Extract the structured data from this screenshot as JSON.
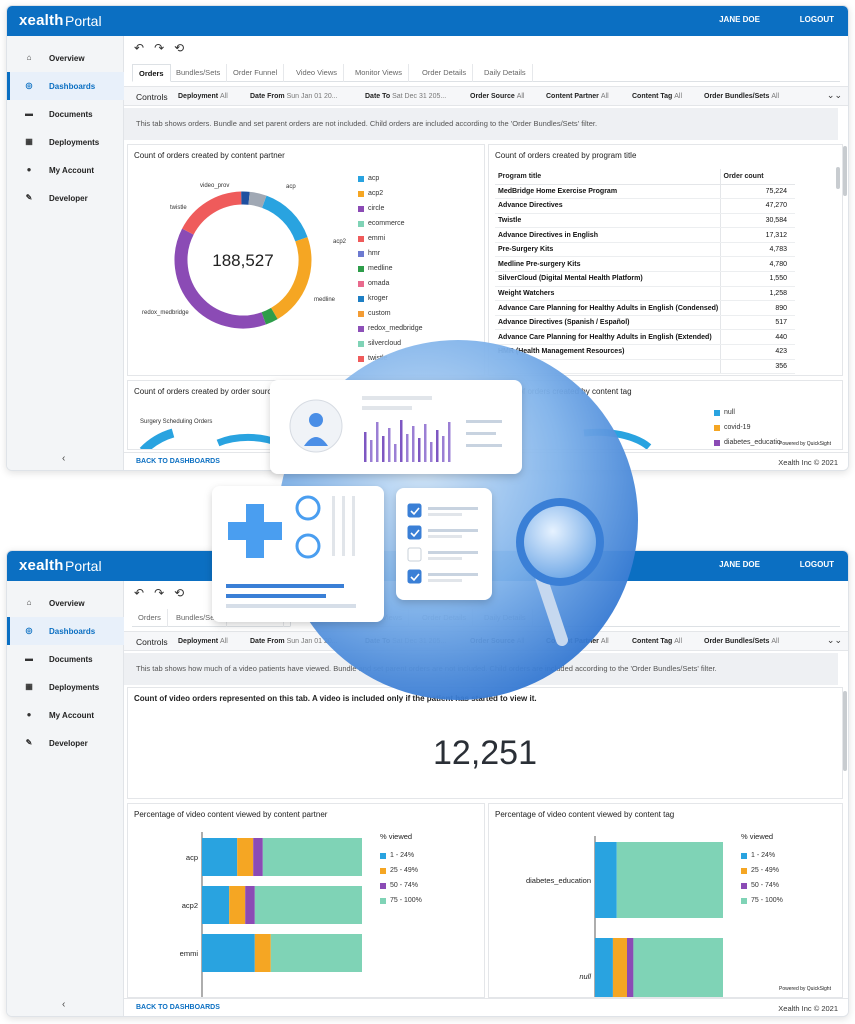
{
  "app": {
    "logo": "xealth",
    "title": "Portal",
    "user": "JANE DOE",
    "logout": "LOGOUT"
  },
  "sidebar": {
    "items": [
      {
        "label": "Overview",
        "icon": "home-icon"
      },
      {
        "label": "Dashboards",
        "icon": "dashboard-icon"
      },
      {
        "label": "Documents",
        "icon": "folder-icon"
      },
      {
        "label": "Deployments",
        "icon": "deployments-icon"
      },
      {
        "label": "My Account",
        "icon": "user-icon"
      },
      {
        "label": "Developer",
        "icon": "wrench-icon"
      }
    ],
    "collapse": "‹"
  },
  "toolbar": {
    "undo": "↶",
    "redo": "↷",
    "reset": "⟲"
  },
  "tabs": [
    "Orders",
    "Bundles/Sets",
    "Order Funnel",
    "Video Views",
    "Monitor Views",
    "Order Details",
    "Daily Details"
  ],
  "controls": {
    "title": "Controls",
    "filters": [
      {
        "label": "Deployment",
        "value": "All"
      },
      {
        "label": "Date From",
        "value": "Sun Jan 01 20..."
      },
      {
        "label": "Date To",
        "value": "Sat Dec 31 205..."
      },
      {
        "label": "Order Source",
        "value": "All"
      },
      {
        "label": "Content Partner",
        "value": "All"
      },
      {
        "label": "Content Tag",
        "value": "All"
      },
      {
        "label": "Order Bundles/Sets",
        "value": "All"
      }
    ]
  },
  "footer": {
    "back": "BACK TO DASHBOARDS",
    "copyright": "Xealth Inc © 2021",
    "powered": "Powered by QuickSight"
  },
  "window1": {
    "info": "This tab shows orders. Bundle and set parent orders are not included. Child orders are included according to the 'Order Bundles/Sets' filter.",
    "donut": {
      "title": "Count of orders created by content partner",
      "total": "188,527",
      "labels": [
        "acp",
        "acp2",
        "medline",
        "redox_medbridge",
        "twistle",
        "video_prov"
      ],
      "legend": [
        {
          "name": "acp",
          "color": "#29a3e0"
        },
        {
          "name": "acp2",
          "color": "#f5a623"
        },
        {
          "name": "circle",
          "color": "#8b4bb5"
        },
        {
          "name": "ecommerce",
          "color": "#7fd3b6"
        },
        {
          "name": "emmi",
          "color": "#ef5b5b"
        },
        {
          "name": "hmr",
          "color": "#6c7ad1"
        },
        {
          "name": "medline",
          "color": "#2e9d4a"
        },
        {
          "name": "omada",
          "color": "#e96a8d"
        },
        {
          "name": "kroger",
          "color": "#1e7fc4"
        },
        {
          "name": "custom",
          "color": "#f39c34"
        },
        {
          "name": "redox_medbridge",
          "color": "#8d50b8"
        },
        {
          "name": "silvercloud",
          "color": "#7fd3b6"
        },
        {
          "name": "twistle",
          "color": "#ef5b5b"
        }
      ],
      "chart_data": {
        "type": "pie",
        "title": "Count of orders created by content partner",
        "slices": [
          {
            "name": "acp",
            "value": 14
          },
          {
            "name": "acp2",
            "value": 22
          },
          {
            "name": "medline",
            "value": 3
          },
          {
            "name": "redox_medbridge",
            "value": 38
          },
          {
            "name": "twistle",
            "value": 17
          },
          {
            "name": "video_prov",
            "value": 2
          },
          {
            "name": "other",
            "value": 4
          }
        ]
      }
    },
    "table": {
      "title": "Count of orders created by program title",
      "headers": [
        "Program title",
        "Order count"
      ],
      "rows": [
        [
          "MedBridge Home Exercise Program",
          "75,224"
        ],
        [
          "Advance Directives",
          "47,270"
        ],
        [
          "Twistle",
          "30,584"
        ],
        [
          "Advance Directives in English",
          "17,312"
        ],
        [
          "Pre-Surgery Kits",
          "4,783"
        ],
        [
          "Medline Pre-surgery Kits",
          "4,780"
        ],
        [
          "SilverCloud (Digital Mental Health Platform)",
          "1,550"
        ],
        [
          "Weight Watchers",
          "1,258"
        ],
        [
          "Advance Care Planning for Healthy Adults in English (Condensed)",
          "890"
        ],
        [
          "Advance Directives (Spanish / Español)",
          "517"
        ],
        [
          "Advance Care Planning for Healthy Adults in English (Extended)",
          "440"
        ],
        [
          "HMR (Health Management Resources)",
          "423"
        ],
        [
          "",
          "356"
        ]
      ]
    },
    "bottom_left_title": "Count of orders created by order source",
    "bottom_left_label": "Surgery Scheduling Orders",
    "bottom_right_title": "Count of orders created by content tag",
    "bottom_right_legend": [
      {
        "name": "null",
        "color": "#29a3e0"
      },
      {
        "name": "covid-19",
        "color": "#f5a623"
      },
      {
        "name": "diabetes_educatio",
        "color": "#8b4bb5"
      }
    ]
  },
  "window2": {
    "info": "This tab shows how much of a video patients have viewed. Bundle and set parent orders are not included. Child orders are included according to the 'Order Bundles/Sets' filter.",
    "kpi": {
      "title": "Count of video orders represented on this tab. A video is included only if the patient has started to view it.",
      "value": "12,251"
    },
    "bar_left": {
      "title": "Percentage of video content viewed by content partner",
      "legend_title": "% viewed"
    },
    "bar_right": {
      "title": "Percentage of video content viewed by content tag",
      "legend_title": "% viewed"
    },
    "legend": [
      {
        "name": "1 - 24%",
        "color": "#29a3e0"
      },
      {
        "name": "25 - 49%",
        "color": "#f5a623"
      },
      {
        "name": "50 - 74%",
        "color": "#8b4bb5"
      },
      {
        "name": "75 - 100%",
        "color": "#7fd3b6"
      }
    ],
    "chart_data": [
      {
        "type": "bar",
        "title": "Percentage of video content viewed by content partner",
        "categories": [
          "acp",
          "acp2",
          "emmi"
        ],
        "series": [
          {
            "name": "1 - 24%",
            "values": [
              22,
              17,
              33
            ]
          },
          {
            "name": "25 - 49%",
            "values": [
              10,
              10,
              10
            ]
          },
          {
            "name": "50 - 74%",
            "values": [
              6,
              6,
              0
            ]
          },
          {
            "name": "75 - 100%",
            "values": [
              62,
              67,
              57
            ]
          }
        ]
      },
      {
        "type": "bar",
        "title": "Percentage of video content viewed by content tag",
        "categories": [
          "diabetes_education",
          "null"
        ],
        "series": [
          {
            "name": "1 - 24%",
            "values": [
              17,
              14
            ]
          },
          {
            "name": "25 - 49%",
            "values": [
              0,
              11
            ]
          },
          {
            "name": "50 - 74%",
            "values": [
              0,
              5
            ]
          },
          {
            "name": "75 - 100%",
            "values": [
              83,
              70
            ]
          }
        ]
      }
    ]
  }
}
